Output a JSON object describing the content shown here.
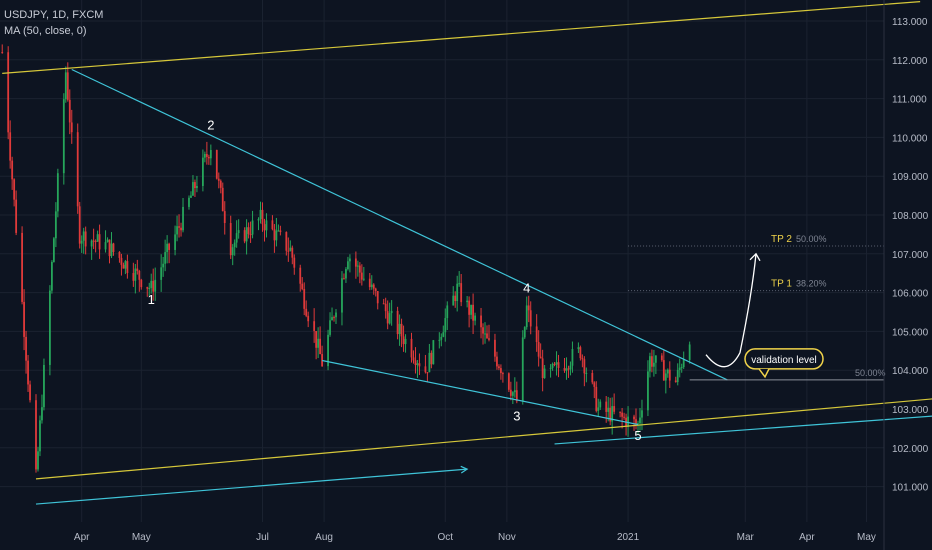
{
  "header": {
    "symbol_line": "USDJPY, 1D, FXCM",
    "indicator_line": "MA (50, close, 0)"
  },
  "colors": {
    "background": "#0d1421",
    "candle_up": "#26a65b",
    "candle_down": "#e03a3a",
    "trendline_cyan": "#3fc4d8",
    "channel_yellow": "#d6c83a",
    "label_yellow": "#f0d34a",
    "wave_label": "#ffffff",
    "grid": "#1b2230",
    "axis_text": "#b7bcc8"
  },
  "chart_data": {
    "type": "candlestick",
    "y_axis": {
      "ticks": [
        "101.000",
        "102.000",
        "103.000",
        "104.000",
        "105.000",
        "106.000",
        "107.000",
        "108.000",
        "109.000",
        "110.000",
        "111.000",
        "112.000",
        "113.000"
      ],
      "range": [
        100.2,
        113.5
      ]
    },
    "x_axis": {
      "ticks": [
        "Apr",
        "May",
        "Jul",
        "Aug",
        "Oct",
        "Nov",
        "2021",
        "Mar",
        "Apr",
        "May"
      ]
    },
    "price_anchors": [
      {
        "date": "2020-02-21",
        "price": 112.2
      },
      {
        "date": "2020-03-09",
        "price": 101.2
      },
      {
        "date": "2020-03-16",
        "price": 106.0
      },
      {
        "date": "2020-03-24",
        "price": 111.7
      },
      {
        "date": "2020-03-31",
        "price": 107.5
      },
      {
        "date": "2020-04-14",
        "price": 107.2
      },
      {
        "date": "2020-05-06",
        "price": 106.1
      },
      {
        "date": "2020-05-20",
        "price": 107.7
      },
      {
        "date": "2020-06-05",
        "price": 109.8
      },
      {
        "date": "2020-06-15",
        "price": 107.2
      },
      {
        "date": "2020-06-30",
        "price": 107.9
      },
      {
        "date": "2020-07-15",
        "price": 107.1
      },
      {
        "date": "2020-07-31",
        "price": 104.2
      },
      {
        "date": "2020-08-13",
        "price": 107.0
      },
      {
        "date": "2020-08-31",
        "price": 105.6
      },
      {
        "date": "2020-09-21",
        "price": 104.0
      },
      {
        "date": "2020-10-07",
        "price": 106.1
      },
      {
        "date": "2020-10-30",
        "price": 104.0
      },
      {
        "date": "2020-11-06",
        "price": 103.2
      },
      {
        "date": "2020-11-11",
        "price": 105.6
      },
      {
        "date": "2020-11-20",
        "price": 103.8
      },
      {
        "date": "2020-12-08",
        "price": 104.5
      },
      {
        "date": "2020-12-17",
        "price": 103.0
      },
      {
        "date": "2021-01-06",
        "price": 102.6
      },
      {
        "date": "2021-01-12",
        "price": 104.3
      },
      {
        "date": "2021-01-25",
        "price": 103.7
      },
      {
        "date": "2021-02-01",
        "price": 104.9
      }
    ],
    "wave_labels": [
      {
        "label": "1",
        "date": "2020-05-06",
        "price": 105.7
      },
      {
        "label": "2",
        "date": "2020-06-05",
        "price": 110.2
      },
      {
        "label": "3",
        "date": "2020-11-06",
        "price": 102.7
      },
      {
        "label": "4",
        "date": "2020-11-11",
        "price": 106.0
      },
      {
        "label": "5",
        "date": "2021-01-06",
        "price": 102.2
      }
    ],
    "lines": [
      {
        "name": "upper-channel",
        "color": "yellow",
        "from": {
          "date": "2020-02-21",
          "price": 111.65
        },
        "to": {
          "date": "2021-05-28",
          "price": 113.5
        }
      },
      {
        "name": "lower-channel",
        "color": "yellow",
        "from": {
          "date": "2020-03-09",
          "price": 101.2
        },
        "to": {
          "date": "2021-06-12",
          "price": 103.3
        }
      },
      {
        "name": "wedge-upper",
        "color": "cyan",
        "from": {
          "date": "2020-03-27",
          "price": 111.75
        },
        "to": {
          "date": "2021-02-20",
          "price": 103.75
        }
      },
      {
        "name": "wedge-lower",
        "color": "cyan",
        "from": {
          "date": "2020-07-31",
          "price": 104.25
        },
        "to": {
          "date": "2021-01-06",
          "price": 102.6
        }
      }
    ],
    "arrows": [
      {
        "name": "lower-left-arrow",
        "from": {
          "date": "2020-03-09",
          "price": 100.55
        },
        "to": {
          "date": "2020-10-12",
          "price": 101.45
        }
      },
      {
        "name": "lower-right-arrow",
        "from": {
          "date": "2020-11-25",
          "price": 102.1
        },
        "to": {
          "date": "2021-06-12",
          "price": 102.85
        }
      }
    ],
    "horizontal_levels": [
      {
        "name": "TP 2",
        "label": "TP 2",
        "pct": "50.00%",
        "price": 107.2,
        "from": "2021-01-01"
      },
      {
        "name": "TP 1",
        "label": "TP 1",
        "pct": "38.20%",
        "price": 106.05,
        "from": "2021-01-01"
      },
      {
        "name": "validation",
        "label": "",
        "pct": "50.00%",
        "price": 103.75,
        "from": "2021-02-01"
      }
    ],
    "callout": {
      "text": "validation level"
    },
    "projection": {
      "description": "curved arrow up from validation level toward TP 2"
    }
  }
}
